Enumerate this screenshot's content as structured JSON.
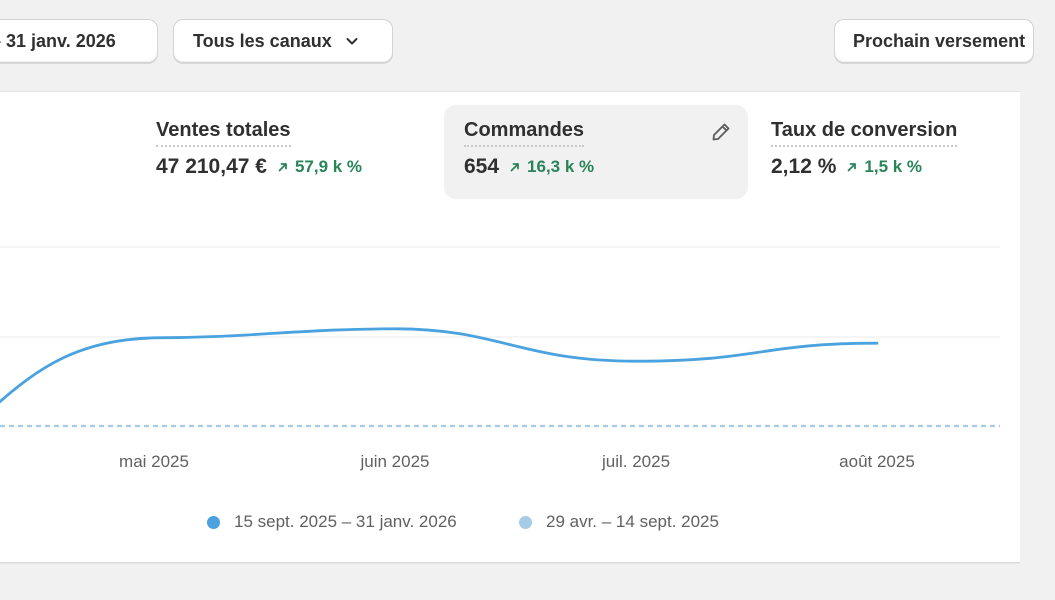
{
  "toolbar": {
    "date_range_label": "– 31 janv. 2026",
    "channel_filter_label": "Tous les canaux",
    "payout_label": "Prochain versement"
  },
  "metrics": [
    {
      "label": "Ventes totales",
      "value": "47 210,47 €",
      "delta": "57,9 k %",
      "trend": "up",
      "selected": false
    },
    {
      "label": "Commandes",
      "value": "654",
      "delta": "16,3 k %",
      "trend": "up",
      "selected": true
    },
    {
      "label": "Taux de conversion",
      "value": "2,12 %",
      "delta": "1,5 k %",
      "trend": "up",
      "selected": false
    }
  ],
  "colors": {
    "accent": "#4aa3df",
    "comparison": "#a6cbe8",
    "positive": "#29845a"
  },
  "icons": [
    "chevron-down-icon",
    "pencil-icon",
    "arrow-up-right-icon",
    "legend-dot-icon"
  ],
  "chart_data": {
    "type": "line",
    "x": [
      "mai 2025",
      "juin 2025",
      "juil. 2025",
      "août 2025"
    ],
    "series": [
      {
        "name": "15 sept. 2025 – 31 janv. 2026",
        "style": "solid",
        "values": [
          49,
          54,
          36,
          46
        ]
      },
      {
        "name": "29 avr. – 14 sept. 2025",
        "style": "dashed",
        "values": [
          0,
          0,
          0,
          0
        ]
      }
    ],
    "xlabel": "",
    "ylabel": "",
    "grid": true,
    "legend": "bottom"
  }
}
